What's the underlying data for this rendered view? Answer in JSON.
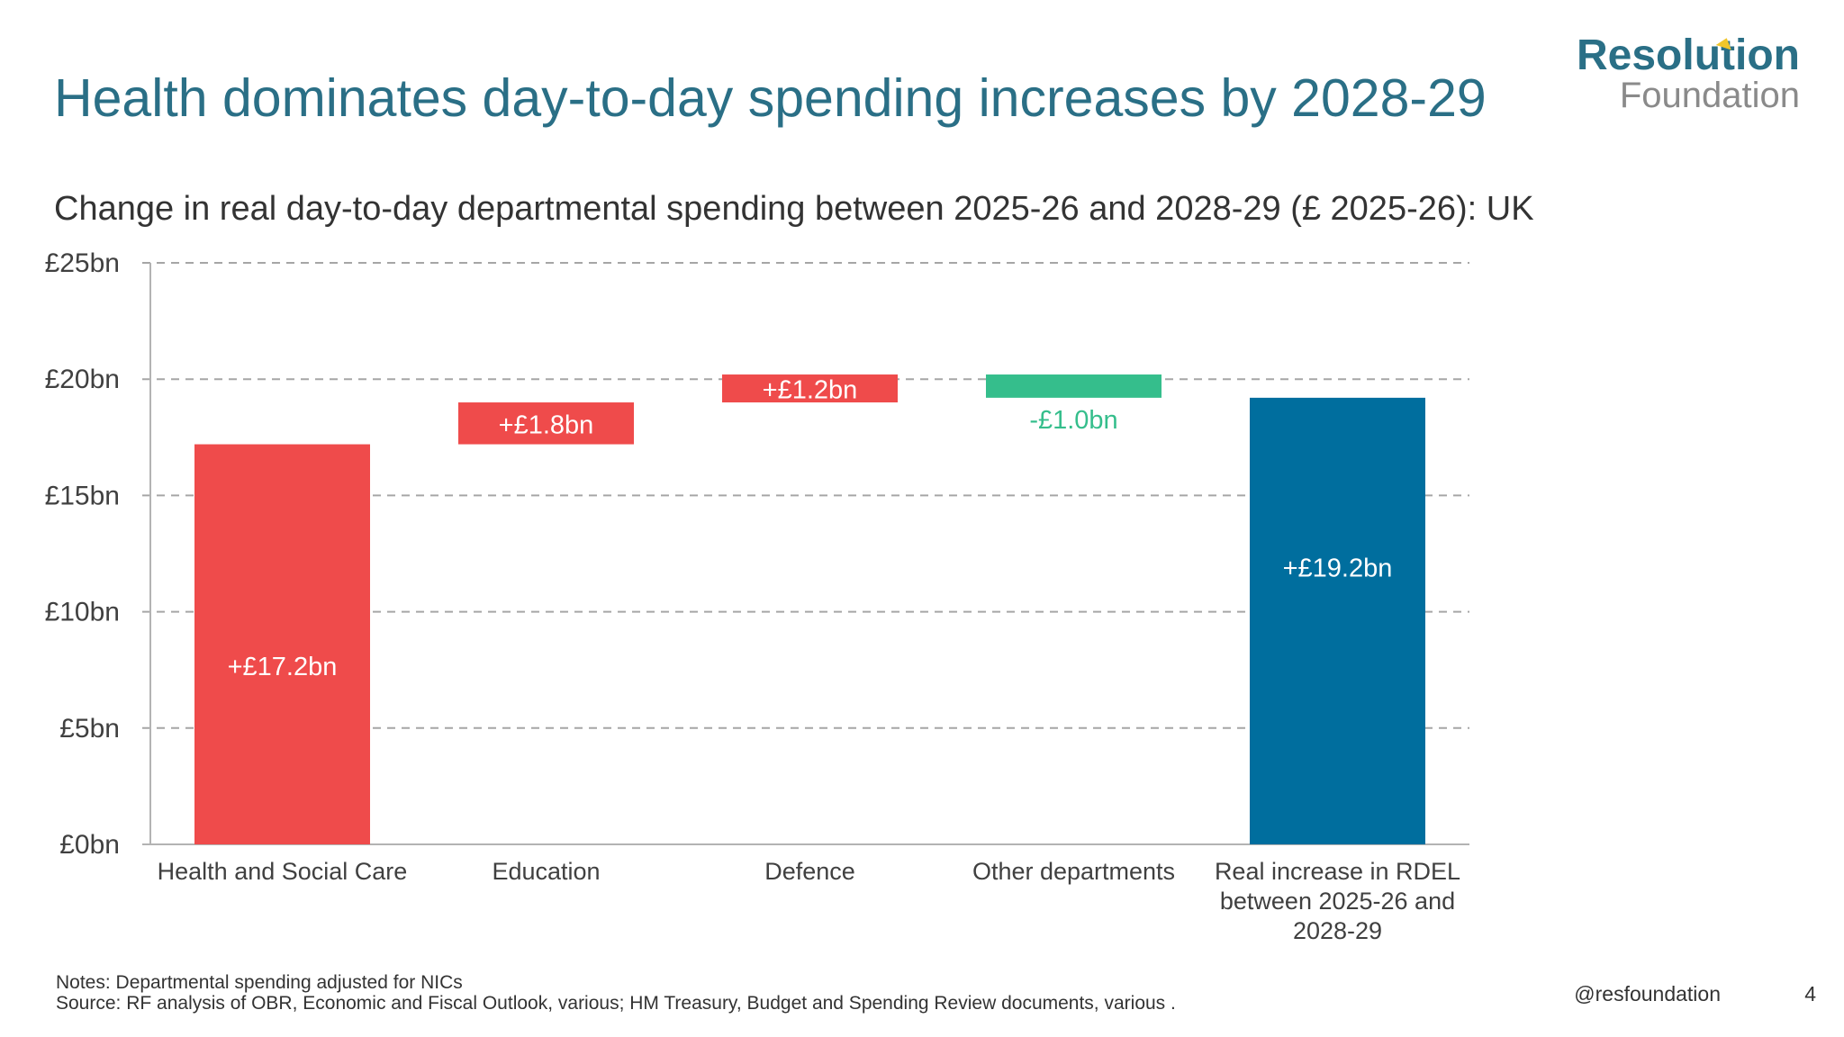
{
  "title": "Health dominates day-to-day spending increases by 2028-29",
  "logo": {
    "main": "Resolution",
    "sub": "Foundation"
  },
  "chart_data": {
    "type": "waterfall",
    "title": "Change in real day-to-day departmental spending between 2025-26 and 2028-29 (£ 2025-26): UK",
    "xlabel": "",
    "ylabel": "",
    "ylim": [
      0,
      25
    ],
    "yticks": [
      0,
      5,
      10,
      15,
      20,
      25
    ],
    "ytick_labels": [
      "£0bn",
      "£5bn",
      "£10bn",
      "£15bn",
      "£20bn",
      "£25bn"
    ],
    "grid": true,
    "categories": [
      [
        "Health and Social Care"
      ],
      [
        "Education"
      ],
      [
        "Defence"
      ],
      [
        "Other departments"
      ],
      [
        "Real increase in RDEL",
        "between 2025-26 and",
        "2028-29"
      ]
    ],
    "values": [
      17.2,
      1.8,
      1.2,
      -1.0,
      19.2
    ],
    "is_total": [
      false,
      false,
      false,
      false,
      true
    ],
    "data_labels": [
      "+£17.2bn",
      "+£1.8bn",
      "+£1.2bn",
      "-£1.0bn",
      "+£19.2bn"
    ],
    "colors": {
      "increase": "#ef4b4b",
      "decrease": "#35be8c",
      "total": "#006e9e",
      "decrease_label": "#35be8c",
      "grid": "#a6a6a6",
      "axis": "#b3b3b3"
    }
  },
  "footer": {
    "notes": "Notes: Departmental spending adjusted for NICs",
    "source": "Source: RF analysis of OBR, Economic and Fiscal Outlook, various; HM Treasury, Budget and Spending Review documents, various   .",
    "handle": "@resfoundation",
    "page": "4"
  },
  "colors": {
    "title": "#2a6f86",
    "logo_main": "#2a6f86",
    "logo_accent": "#f0c62b"
  }
}
